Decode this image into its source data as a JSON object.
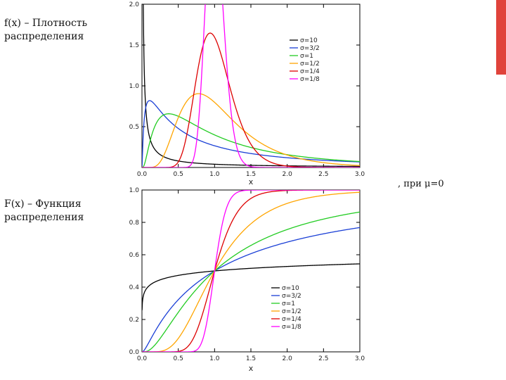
{
  "slide": {
    "pdf_label": "f(x) – Плотность распределения",
    "cdf_label": "F(x) – Функция распределения",
    "condition": ", при μ=0",
    "accent_color": "#e0433b"
  },
  "chart_data": [
    {
      "type": "line",
      "name": "pdf",
      "title": "",
      "xlabel": "x",
      "ylabel": "",
      "xlim": [
        0,
        3
      ],
      "ylim": [
        0,
        2
      ],
      "xticks": [
        "0.0",
        "0.5",
        "1.0",
        "1.5",
        "2.0",
        "2.5",
        "3.0"
      ],
      "yticks": [
        "0.5",
        "1.0",
        "1.5",
        "2.0"
      ],
      "legend_position": "top-right",
      "series": [
        {
          "name": "σ=10",
          "sigma": 10,
          "color": "#000000"
        },
        {
          "name": "σ=3/2",
          "sigma": 1.5,
          "color": "#1a3fd6"
        },
        {
          "name": "σ=1",
          "sigma": 1,
          "color": "#22cc22"
        },
        {
          "name": "σ=1/2",
          "sigma": 0.5,
          "color": "#ffa500"
        },
        {
          "name": "σ=1/4",
          "sigma": 0.25,
          "color": "#dd0000"
        },
        {
          "name": "σ=1/8",
          "sigma": 0.125,
          "color": "#ff00ff"
        }
      ]
    },
    {
      "type": "line",
      "name": "cdf",
      "title": "",
      "xlabel": "x",
      "ylabel": "",
      "xlim": [
        0,
        3
      ],
      "ylim": [
        0,
        1
      ],
      "xticks": [
        "0.0",
        "0.5",
        "1.0",
        "1.5",
        "2.0",
        "2.5",
        "3.0"
      ],
      "yticks": [
        "0.0",
        "0.2",
        "0.4",
        "0.6",
        "0.8",
        "1.0"
      ],
      "legend_position": "bottom-right",
      "series": [
        {
          "name": "σ=10",
          "sigma": 10,
          "color": "#000000"
        },
        {
          "name": "σ=3/2",
          "sigma": 1.5,
          "color": "#1a3fd6"
        },
        {
          "name": "σ=1",
          "sigma": 1,
          "color": "#22cc22"
        },
        {
          "name": "σ=1/2",
          "sigma": 0.5,
          "color": "#ffa500"
        },
        {
          "name": "σ=1/4",
          "sigma": 0.25,
          "color": "#dd0000"
        },
        {
          "name": "σ=1/8",
          "sigma": 0.125,
          "color": "#ff00ff"
        }
      ]
    }
  ]
}
